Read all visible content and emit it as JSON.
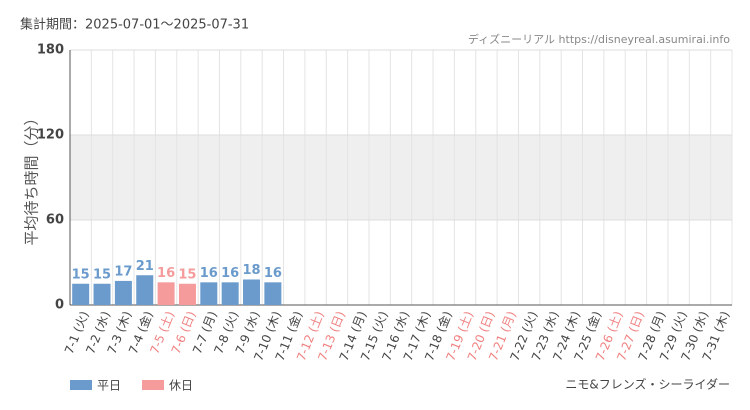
{
  "chart_data": {
    "type": "bar",
    "period": "集計期間：2025-07-01～2025-07-31",
    "source": "ディズニーリアル https://disneyreal.asumirai.info",
    "ylabel": "平均待ち時間（分）",
    "attraction": "ニモ&フレンズ・シーライダー",
    "categories": [
      "7-1 (火)",
      "7-2 (水)",
      "7-3 (木)",
      "7-4 (金)",
      "7-5 (土)",
      "7-6 (日)",
      "7-7 (月)",
      "7-8 (火)",
      "7-9 (水)",
      "7-10 (木)",
      "7-11 (金)",
      "7-12 (土)",
      "7-13 (日)",
      "7-14 (月)",
      "7-15 (火)",
      "7-16 (水)",
      "7-17 (木)",
      "7-18 (金)",
      "7-19 (土)",
      "7-20 (日)",
      "7-21 (月)",
      "7-22 (火)",
      "7-23 (水)",
      "7-24 (木)",
      "7-25 (金)",
      "7-26 (土)",
      "7-27 (日)",
      "7-28 (月)",
      "7-29 (火)",
      "7-30 (水)",
      "7-31 (木)"
    ],
    "category_colors": [
      "#444",
      "#444",
      "#444",
      "#444",
      "#f08080",
      "#f08080",
      "#444",
      "#444",
      "#444",
      "#444",
      "#444",
      "#f08080",
      "#f08080",
      "#444",
      "#444",
      "#444",
      "#444",
      "#444",
      "#f08080",
      "#f08080",
      "#f08080",
      "#444",
      "#444",
      "#444",
      "#444",
      "#f08080",
      "#f08080",
      "#444",
      "#444",
      "#444",
      "#444"
    ],
    "series": [
      {
        "name": "平日",
        "color": "#6a9bcc",
        "values": [
          15,
          15,
          17,
          21,
          null,
          null,
          16,
          16,
          18,
          16,
          null,
          null,
          null,
          null,
          null,
          null,
          null,
          null,
          null,
          null,
          null,
          null,
          null,
          null,
          null,
          null,
          null,
          null,
          null,
          null,
          null
        ]
      },
      {
        "name": "休日",
        "color": "#f59b9b",
        "values": [
          null,
          null,
          null,
          null,
          16,
          15,
          null,
          null,
          null,
          null,
          null,
          null,
          null,
          null,
          null,
          null,
          null,
          null,
          null,
          null,
          null,
          null,
          null,
          null,
          null,
          null,
          null,
          null,
          null,
          null,
          null
        ]
      }
    ],
    "ylim": [
      0,
      180
    ],
    "yticks": [
      0,
      60,
      120,
      180
    ],
    "grid": true,
    "band": [
      60,
      120
    ],
    "band_color": "#efefef"
  }
}
